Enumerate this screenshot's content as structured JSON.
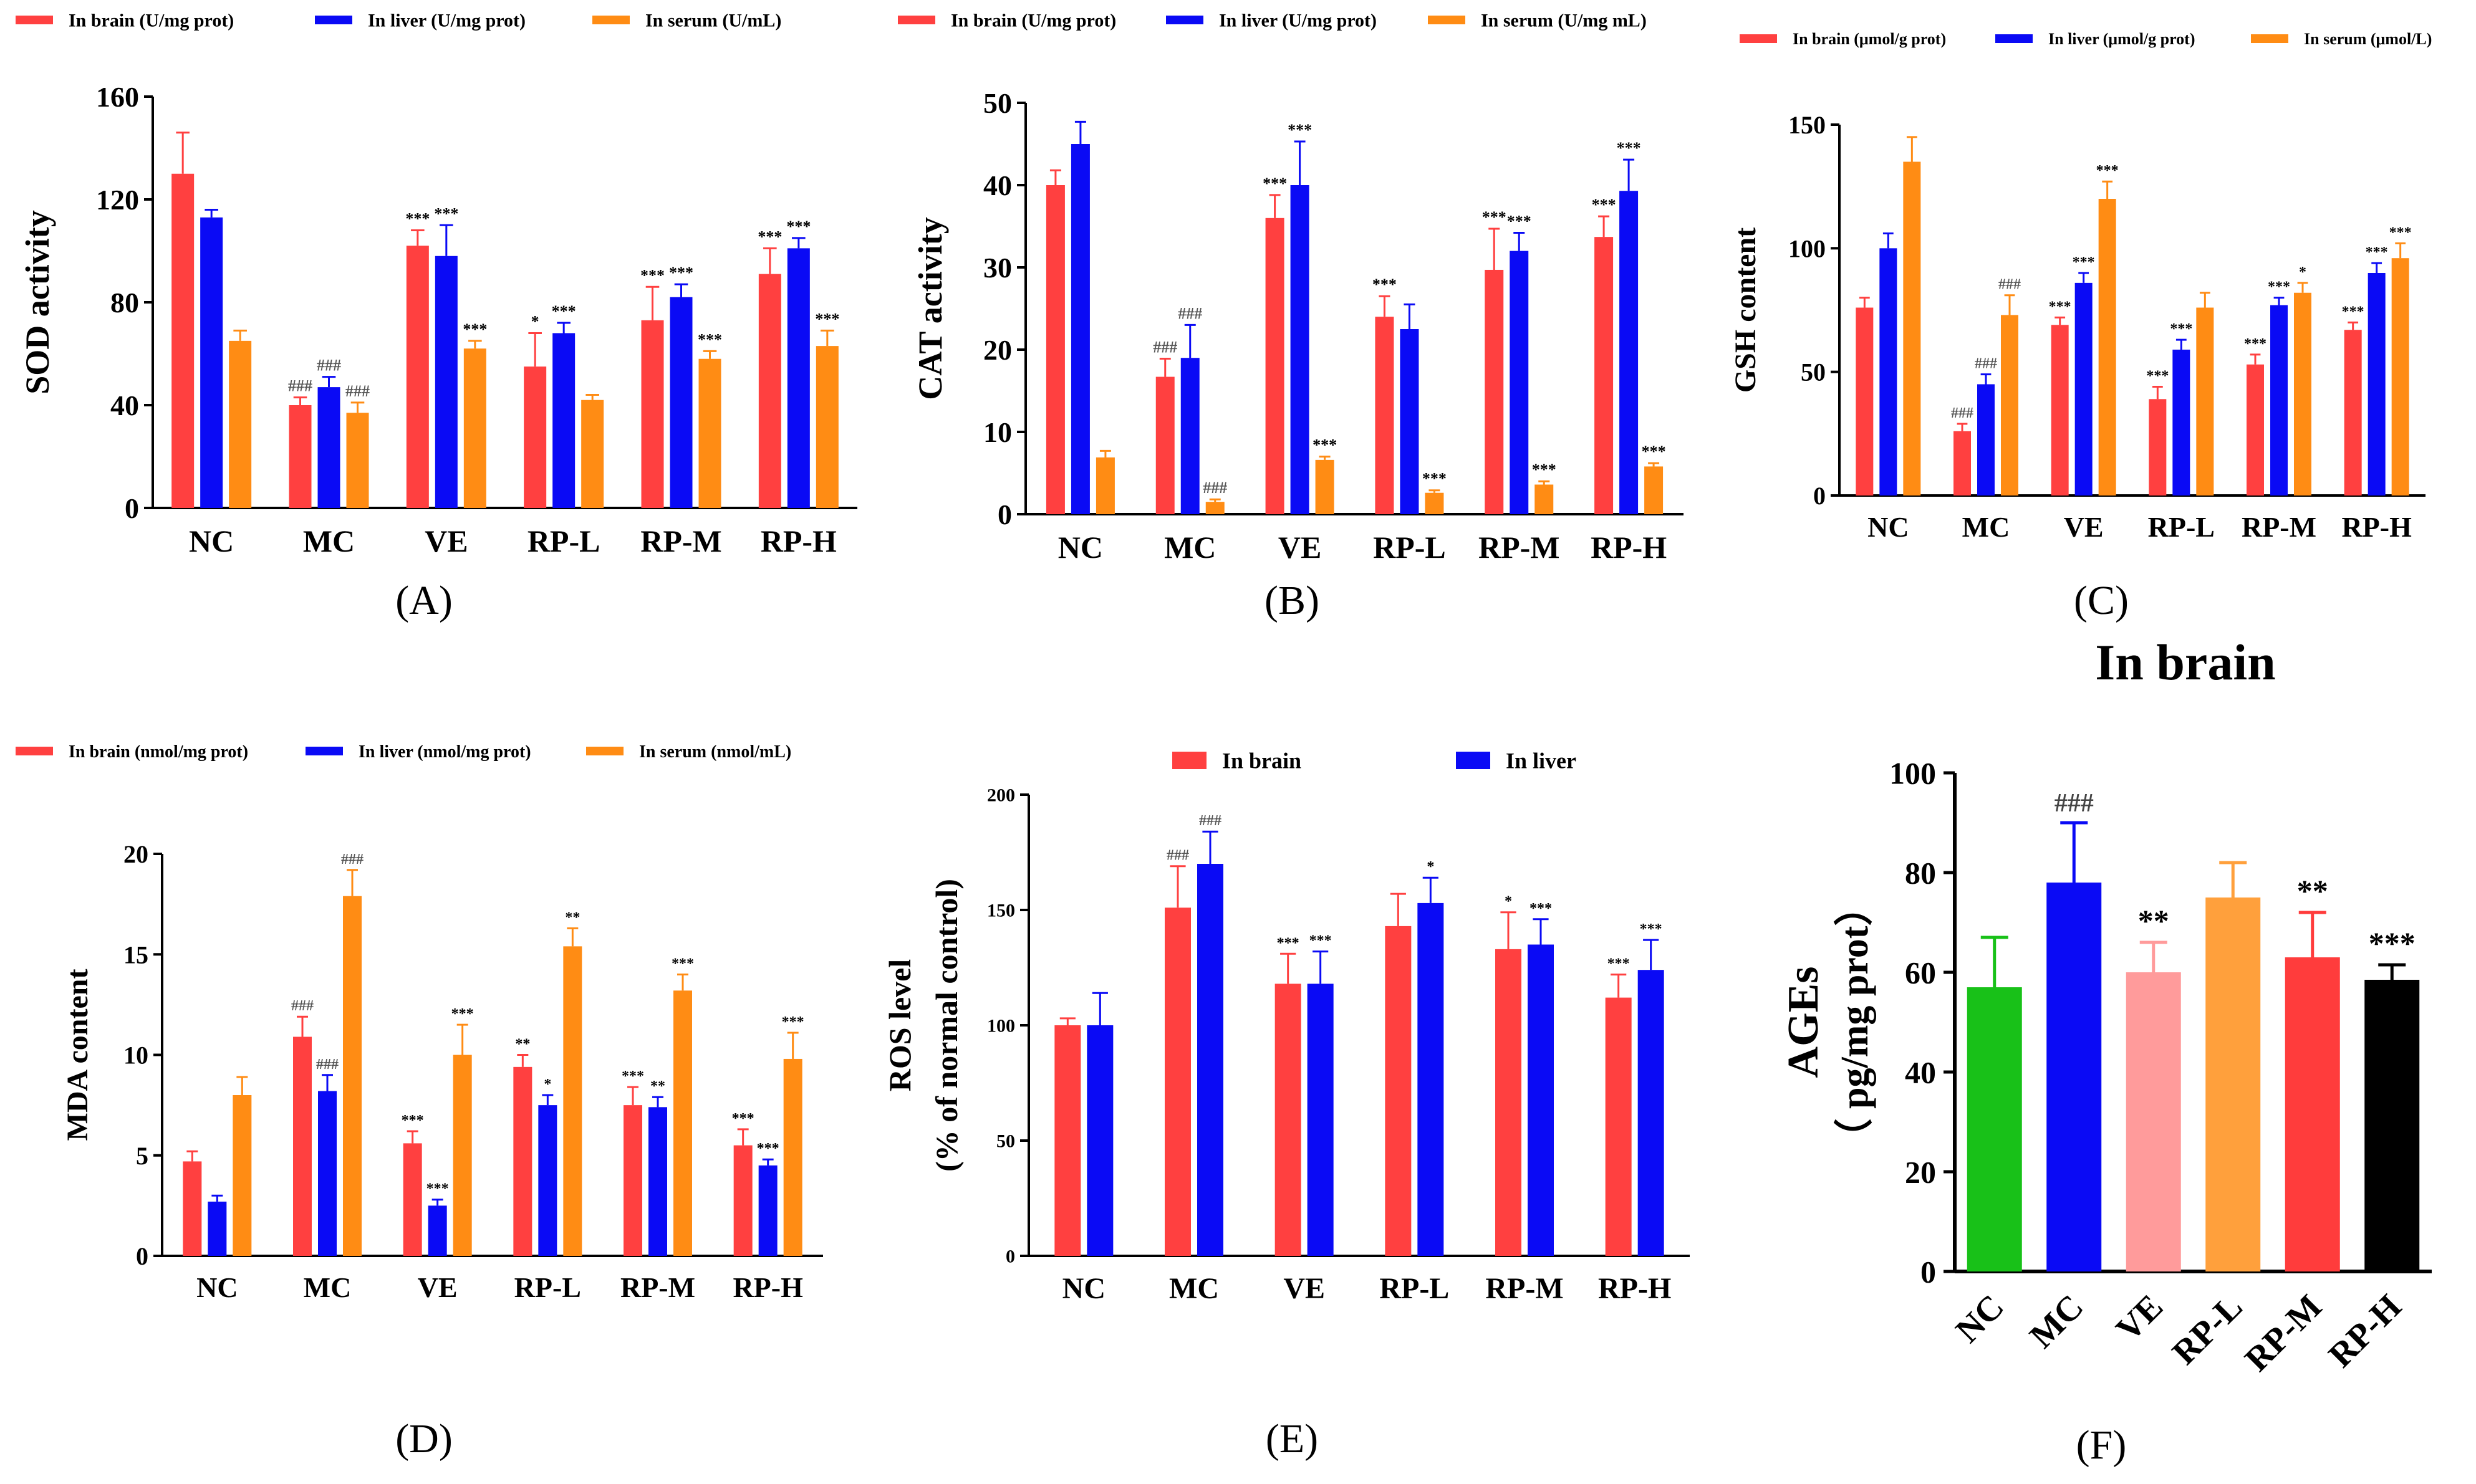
{
  "figure_title": "Antioxidant indices figure",
  "chart_data": [
    {
      "panel": "A",
      "panel_label": "(A)",
      "type": "bar",
      "ylabel": "SOD activity",
      "ylim": [
        0,
        160
      ],
      "yticks": [
        0,
        40,
        80,
        120,
        160
      ],
      "categories": [
        "NC",
        "MC",
        "VE",
        "RP-L",
        "RP-M",
        "RP-H"
      ],
      "series": [
        {
          "name": "In brain (U/mg prot)",
          "color": "#ff4040",
          "values": [
            130,
            40,
            102,
            55,
            73,
            91
          ],
          "errors": [
            16,
            3,
            6,
            13,
            13,
            10
          ],
          "sig": [
            "",
            "###",
            "***",
            "*",
            "***",
            "***"
          ]
        },
        {
          "name": "In liver (U/mg prot)",
          "color": "#0a0af5",
          "values": [
            113,
            47,
            98,
            68,
            82,
            101
          ],
          "errors": [
            3,
            4,
            12,
            4,
            5,
            4
          ],
          "sig": [
            "",
            "###",
            "***",
            "***",
            "***",
            "***"
          ]
        },
        {
          "name": "In serum (U/mL)",
          "color": "#ff8c14",
          "values": [
            65,
            37,
            62,
            42,
            58,
            63
          ],
          "errors": [
            4,
            4,
            3,
            2,
            3,
            6
          ],
          "sig": [
            "",
            "###",
            "***",
            "",
            "***",
            "***"
          ]
        }
      ]
    },
    {
      "panel": "B",
      "panel_label": "(B)",
      "type": "bar",
      "ylabel": "CAT activity",
      "ylim": [
        0,
        50
      ],
      "yticks": [
        0,
        10,
        20,
        30,
        40,
        50
      ],
      "categories": [
        "NC",
        "MC",
        "VE",
        "RP-L",
        "RP-M",
        "RP-H"
      ],
      "series": [
        {
          "name": "In brain (U/mg prot)",
          "color": "#ff4040",
          "values": [
            40,
            16.7,
            36,
            24,
            29.7,
            33.7
          ],
          "errors": [
            1.8,
            2.2,
            2.8,
            2.5,
            5,
            2.5
          ],
          "sig": [
            "",
            "###",
            "***",
            "***",
            "***",
            "***"
          ]
        },
        {
          "name": "In liver (U/mg prot)",
          "color": "#0a0af5",
          "values": [
            45,
            19,
            40,
            22.5,
            32,
            39.3
          ],
          "errors": [
            2.7,
            4,
            5.3,
            3,
            2.2,
            3.8
          ],
          "sig": [
            "",
            "###",
            "***",
            "",
            "***",
            "***"
          ]
        },
        {
          "name": "In serum (U/mg mL)",
          "color": "#ff8c14",
          "values": [
            6.9,
            1.5,
            6.6,
            2.6,
            3.6,
            5.8
          ],
          "errors": [
            0.8,
            0.3,
            0.4,
            0.3,
            0.4,
            0.4
          ],
          "sig": [
            "",
            "###",
            "***",
            "***",
            "***",
            "***"
          ]
        }
      ]
    },
    {
      "panel": "C",
      "panel_label": "(C)",
      "type": "bar",
      "ylabel": "GSH content",
      "ylim": [
        0,
        150
      ],
      "yticks": [
        0,
        50,
        100,
        150
      ],
      "categories": [
        "NC",
        "MC",
        "VE",
        "RP-L",
        "RP-M",
        "RP-H"
      ],
      "series": [
        {
          "name": "In brain (μmol/g prot)",
          "color": "#ff4040",
          "values": [
            76,
            26,
            69,
            39,
            53,
            67
          ],
          "errors": [
            4,
            3,
            3,
            5,
            4,
            3
          ],
          "sig": [
            "",
            "###",
            "***",
            "***",
            "***",
            "***"
          ]
        },
        {
          "name": "In liver (μmol/g prot)",
          "color": "#0a0af5",
          "values": [
            100,
            45,
            86,
            59,
            77,
            90
          ],
          "errors": [
            6,
            4,
            4,
            4,
            3,
            4
          ],
          "sig": [
            "",
            "###",
            "***",
            "***",
            "***",
            "***"
          ]
        },
        {
          "name": "In serum (μmol/L)",
          "color": "#ff8c14",
          "values": [
            135,
            73,
            120,
            76,
            82,
            96
          ],
          "errors": [
            10,
            8,
            7,
            6,
            4,
            6
          ],
          "sig": [
            "",
            "###",
            "***",
            "",
            "*",
            "***"
          ]
        }
      ]
    },
    {
      "panel": "D",
      "panel_label": "(D)",
      "type": "bar",
      "ylabel": "MDA content",
      "ylim": [
        0,
        20
      ],
      "yticks": [
        0,
        5,
        10,
        15,
        20
      ],
      "categories": [
        "NC",
        "MC",
        "VE",
        "RP-L",
        "RP-M",
        "RP-H"
      ],
      "series": [
        {
          "name": "In brain (nmol/mg prot)",
          "color": "#ff4040",
          "values": [
            4.7,
            10.9,
            5.6,
            9.4,
            7.5,
            5.5
          ],
          "errors": [
            0.5,
            1.0,
            0.6,
            0.6,
            0.9,
            0.8
          ],
          "sig": [
            "",
            "###",
            "***",
            "**",
            "***",
            "***"
          ]
        },
        {
          "name": "In liver (nmol/mg prot)",
          "color": "#0a0af5",
          "values": [
            2.7,
            8.2,
            2.5,
            7.5,
            7.4,
            4.5
          ],
          "errors": [
            0.3,
            0.8,
            0.3,
            0.5,
            0.5,
            0.3
          ],
          "sig": [
            "",
            "###",
            "***",
            "*",
            "**",
            "***"
          ]
        },
        {
          "name": "In serum (nmol/mL)",
          "color": "#ff8c14",
          "values": [
            8.0,
            17.9,
            10.0,
            15.4,
            13.2,
            9.8
          ],
          "errors": [
            0.9,
            1.3,
            1.5,
            0.9,
            0.8,
            1.3
          ],
          "sig": [
            "",
            "###",
            "***",
            "**",
            "***",
            "***"
          ]
        }
      ]
    },
    {
      "panel": "E",
      "panel_label": "(E)",
      "type": "bar",
      "ylabel_line1": "ROS level",
      "ylabel_line2": "(% of normal control)",
      "ylim": [
        0,
        200
      ],
      "yticks": [
        0,
        50,
        100,
        150,
        200
      ],
      "categories": [
        "NC",
        "MC",
        "VE",
        "RP-L",
        "RP-M",
        "RP-H"
      ],
      "series": [
        {
          "name": "In brain",
          "color": "#ff4040",
          "values": [
            100,
            151,
            118,
            143,
            133,
            112
          ],
          "errors": [
            3,
            18,
            13,
            14,
            16,
            10
          ],
          "sig": [
            "",
            "###",
            "***",
            "",
            "*",
            "***"
          ]
        },
        {
          "name": "In liver",
          "color": "#0a0af5",
          "values": [
            100,
            170,
            118,
            153,
            135,
            124
          ],
          "errors": [
            14,
            14,
            14,
            11,
            11,
            13
          ],
          "sig": [
            "",
            "###",
            "***",
            "*",
            "***",
            "***"
          ]
        }
      ]
    },
    {
      "panel": "F",
      "panel_label": "(F)",
      "type": "bar",
      "title": "In brain",
      "ylabel_line1": "AGEs",
      "ylabel_line2": "（ pg/mg prot）",
      "ylim": [
        0,
        100
      ],
      "yticks": [
        0,
        20,
        40,
        60,
        80,
        100
      ],
      "categories": [
        "NC",
        "MC",
        "VE",
        "RP-L",
        "RP-M",
        "RP-H"
      ],
      "values": [
        57,
        78,
        60,
        75,
        63,
        58.5
      ],
      "errors": [
        10,
        12,
        6,
        7,
        9,
        3
      ],
      "colors": [
        "#18c118",
        "#0a0af5",
        "#ff9b9b",
        "#ffa03c",
        "#ff3c3c",
        "#000000"
      ],
      "sig": [
        "",
        "###",
        "**",
        "",
        "**",
        "***"
      ]
    }
  ]
}
